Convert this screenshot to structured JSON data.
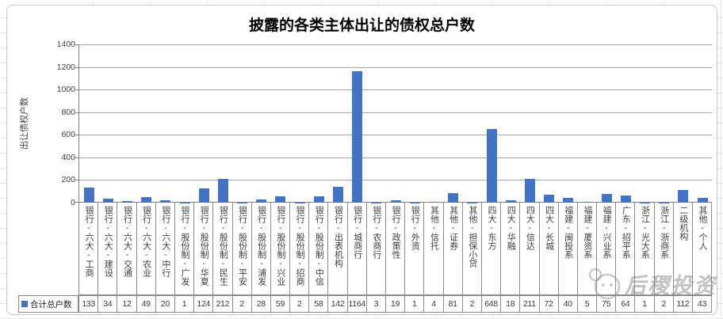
{
  "watermark": {
    "text": "后稷投资"
  },
  "chart_data": {
    "type": "bar",
    "title": "披露的各类主体出让的债权总户数",
    "xlabel": "",
    "ylabel": "出让债权户数",
    "ylim": [
      0,
      1400
    ],
    "yticks": [
      0,
      200,
      400,
      600,
      800,
      1000,
      1200,
      1400
    ],
    "grid": true,
    "legend_position": "bottom-data-table",
    "bar_color": "#4472C4",
    "series_name": "合计总户数",
    "categories": [
      "银行-六大-工商",
      "银行-六大-建设",
      "银行-六大-交通",
      "银行-六大-农业",
      "银行-六大-中行",
      "银行-股份制-广发",
      "银行-股份制-华夏",
      "银行-股份制-民生",
      "银行-股份制-平安",
      "银行-股份制-浦发",
      "银行-股份制-兴业",
      "银行-股份制-招商",
      "银行-股份制-中信",
      "银行-出表机构",
      "银行-城商行",
      "银行-农商行",
      "银行-政策性",
      "银行-外资",
      "其他-信托",
      "其他-证券",
      "其他-担保小贷",
      "四大-东方",
      "四大-华融",
      "四大-信达",
      "四大-长城",
      "福建-闽投系",
      "福建-厦资系",
      "福建-兴业系",
      "广东-招平系",
      "浙江-光大系",
      "浙江-浙商系",
      "二级机构",
      "其他-个人"
    ],
    "values": [
      133,
      34,
      12,
      49,
      20,
      1,
      124,
      212,
      2,
      28,
      59,
      2,
      58,
      142,
      1164,
      3,
      19,
      1,
      4,
      81,
      2,
      648,
      18,
      211,
      72,
      40,
      5,
      75,
      64,
      1,
      2,
      112,
      43
    ]
  }
}
